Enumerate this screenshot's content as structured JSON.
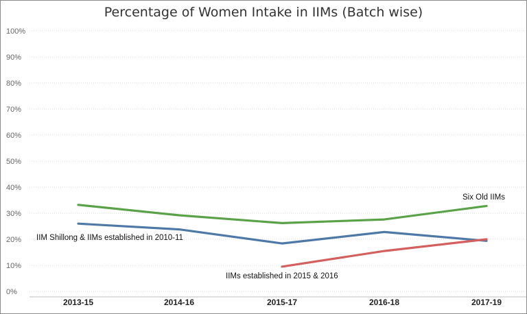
{
  "chart_data": {
    "type": "line",
    "title": "Percentage of Women Intake in IIMs (Batch wise)",
    "categories": [
      "2013-15",
      "2014-16",
      "2015-17",
      "2016-18",
      "2017-19"
    ],
    "y_ticks": [
      "0%",
      "10%",
      "20%",
      "30%",
      "40%",
      "50%",
      "60%",
      "70%",
      "80%",
      "90%",
      "100%"
    ],
    "ylim": [
      0,
      100
    ],
    "grid": "horizontal dotted",
    "series": [
      {
        "name": "Six Old IIMs",
        "color": "#5aa247",
        "values": [
          33.2,
          29.2,
          26.2,
          27.6,
          32.8
        ]
      },
      {
        "name": "IIM Shillong & IIMs established in 2010-11",
        "color": "#4e79a7",
        "values": [
          26.0,
          23.8,
          18.4,
          22.8,
          19.4
        ]
      },
      {
        "name": "IIMs established in 2015 & 2016",
        "color": "#d45f5f",
        "values": [
          null,
          null,
          9.5,
          15.5,
          20.0
        ]
      }
    ]
  }
}
